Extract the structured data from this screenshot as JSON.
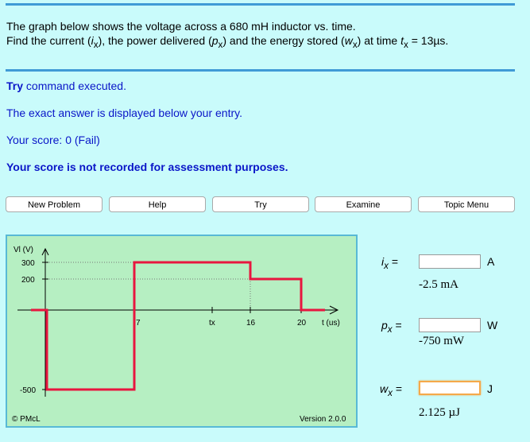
{
  "question": {
    "line1": "The graph below shows the voltage across a 680 mH inductor vs. time.",
    "line2_prefix": "Find the current (",
    "i_sym": "i",
    "i_sub": "x",
    "line2_mid1": "), the power delivered (",
    "p_sym": "p",
    "p_sub": "x",
    "line2_mid2": ") and the energy stored (",
    "w_sym": "w",
    "w_sub": "x",
    "line2_mid3": ") at time ",
    "t_sym": "t",
    "t_sub": "x",
    "line2_end": " = 13µs."
  },
  "messages": {
    "try_word": "Try",
    "try_rest": " command executed.",
    "exact_note": "The exact answer is displayed below your entry.",
    "score": "Your score: 0 (Fail)",
    "not_recorded": "Your score is not recorded for assessment purposes."
  },
  "buttons": [
    "New Problem",
    "Help",
    "Try",
    "Examine",
    "Topic Menu"
  ],
  "graph": {
    "y_axis_label": "Vl (V)",
    "x_axis_label": "t (us)",
    "y_ticks": [
      "300",
      "200",
      "-500"
    ],
    "x_ticks": [
      "7",
      "tx",
      "16",
      "20"
    ],
    "copyright": "© PMcL",
    "version": "Version 2.0.0"
  },
  "answers": [
    {
      "sym": "i",
      "sub": "x",
      "eq": " =",
      "unit": "A",
      "exact": "-2.5 mA",
      "value": ""
    },
    {
      "sym": "p",
      "sub": "x",
      "eq": " =",
      "unit": "W",
      "exact": "-750 mW",
      "value": ""
    },
    {
      "sym": "w",
      "sub": "x",
      "eq": " =",
      "unit": "J",
      "exact": "2.125 µJ",
      "value": ""
    }
  ],
  "colors": {
    "waveform": "#e8163f",
    "accent": "#3f9ad6",
    "message": "#0a16c8"
  }
}
